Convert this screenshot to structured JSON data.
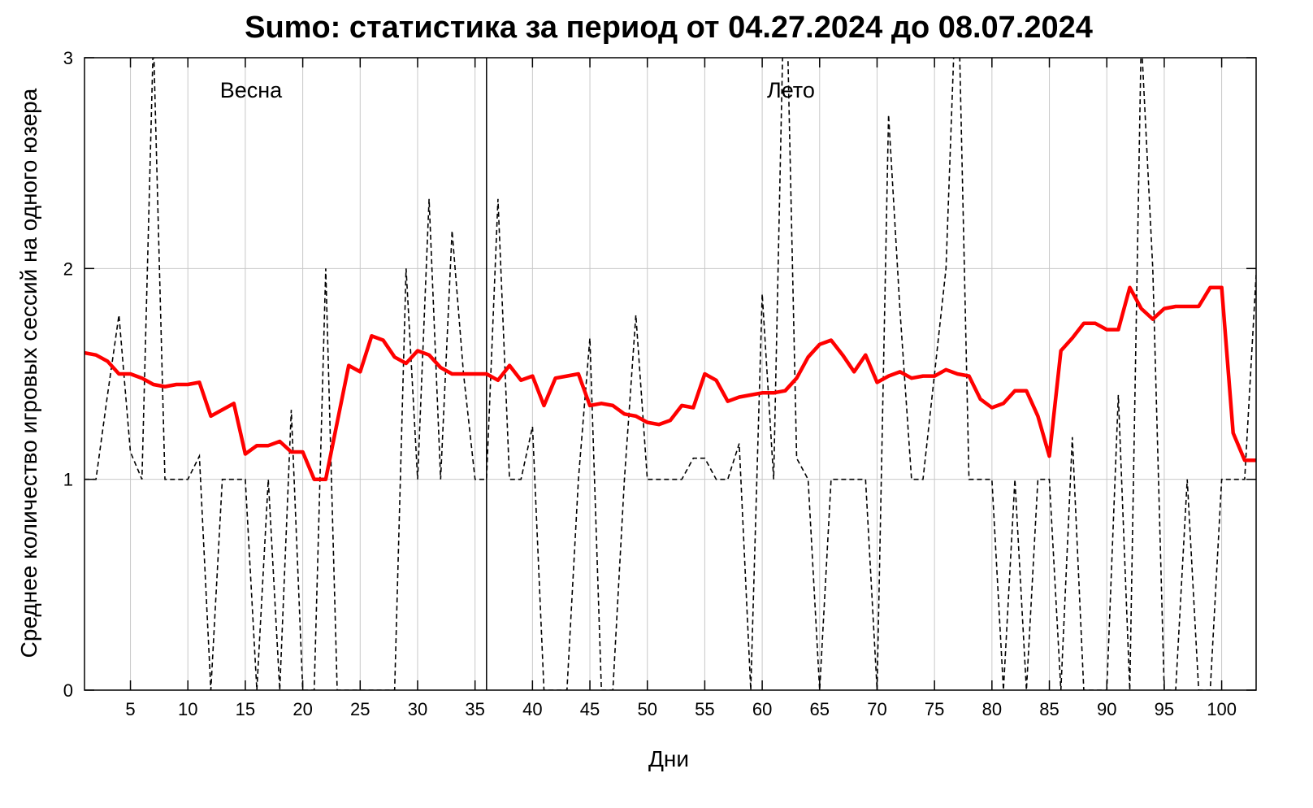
{
  "chart_data": {
    "type": "line",
    "title": "Sumo: статистика за период от 04.27.2024 до 08.07.2024",
    "xlabel": "Дни",
    "ylabel": "Среднее количество игровых сессий на одного юзера",
    "xlim": [
      1,
      103
    ],
    "ylim": [
      0,
      3
    ],
    "x_ticks": [
      5,
      10,
      15,
      20,
      25,
      30,
      35,
      40,
      45,
      50,
      55,
      60,
      65,
      70,
      75,
      80,
      85,
      90,
      95,
      100
    ],
    "y_ticks": [
      0,
      1,
      2,
      3
    ],
    "grid": true,
    "season_divider_x": 36,
    "annotations": [
      {
        "text": "Весна",
        "x": 15.5,
        "y": 2.85
      },
      {
        "text": "Лето",
        "x": 62.5,
        "y": 2.85
      }
    ],
    "series": [
      {
        "style": "dashed",
        "color": "#000000",
        "x": [
          1,
          2,
          3,
          4,
          5,
          6,
          7,
          8,
          9,
          10,
          11,
          12,
          13,
          14,
          15,
          16,
          17,
          18,
          19,
          20,
          21,
          22,
          23,
          24,
          25,
          26,
          27,
          28,
          29,
          30,
          31,
          32,
          33,
          34,
          35,
          36,
          37,
          38,
          39,
          40,
          41,
          42,
          43,
          44,
          45,
          46,
          47,
          48,
          49,
          50,
          51,
          52,
          53,
          54,
          55,
          56,
          57,
          58,
          59,
          60,
          61,
          62,
          63,
          64,
          65,
          66,
          67,
          68,
          69,
          70,
          71,
          72,
          73,
          74,
          75,
          76,
          77,
          78,
          79,
          80,
          81,
          82,
          83,
          84,
          85,
          86,
          87,
          88,
          89,
          90,
          91,
          92,
          93,
          94,
          95,
          96,
          97,
          98,
          99,
          100,
          101,
          102,
          103
        ],
        "values": [
          1,
          1,
          1.4,
          1.78,
          1.13,
          1,
          3.1,
          1,
          1,
          1,
          1.11,
          0,
          1,
          1,
          1,
          0,
          1,
          0,
          1.33,
          0,
          0,
          2,
          0,
          0,
          0,
          0,
          0,
          0,
          2,
          1,
          2.33,
          1,
          2.18,
          1.5,
          1,
          1,
          2.33,
          1,
          1,
          1.25,
          0,
          0,
          0,
          1,
          1.67,
          0,
          0,
          1,
          1.78,
          1,
          1,
          1,
          1,
          1.1,
          1.1,
          1,
          1,
          1.17,
          0,
          1.88,
          1,
          3.6,
          1.1,
          1,
          0,
          1,
          1,
          1,
          1,
          0,
          2.73,
          1.8,
          1,
          1,
          1.5,
          2,
          3.5,
          1,
          1,
          1,
          0,
          1,
          0,
          1,
          1,
          0,
          1.2,
          0,
          0,
          0,
          1.4,
          0,
          3.1,
          2,
          0,
          0,
          1,
          0,
          0,
          1,
          1,
          1,
          1.97
        ]
      },
      {
        "style": "solid",
        "color": "#ff0000",
        "x": [
          1,
          2,
          3,
          4,
          5,
          6,
          7,
          8,
          9,
          10,
          11,
          12,
          13,
          14,
          15,
          16,
          17,
          18,
          19,
          20,
          21,
          22,
          23,
          24,
          25,
          26,
          27,
          28,
          29,
          30,
          31,
          32,
          33,
          34,
          35,
          36,
          37,
          38,
          39,
          40,
          41,
          42,
          43,
          44,
          45,
          46,
          47,
          48,
          49,
          50,
          51,
          52,
          53,
          54,
          55,
          56,
          57,
          58,
          59,
          60,
          61,
          62,
          63,
          64,
          65,
          66,
          67,
          68,
          69,
          70,
          71,
          72,
          73,
          74,
          75,
          76,
          77,
          78,
          79,
          80,
          81,
          82,
          83,
          84,
          85,
          86,
          87,
          88,
          89,
          90,
          91,
          92,
          93,
          94,
          95,
          96,
          97,
          98,
          99,
          100,
          101,
          102,
          103
        ],
        "values": [
          1.6,
          1.59,
          1.56,
          1.5,
          1.5,
          1.48,
          1.45,
          1.44,
          1.45,
          1.45,
          1.46,
          1.3,
          1.33,
          1.36,
          1.12,
          1.16,
          1.16,
          1.18,
          1.13,
          1.13,
          1.0,
          1.0,
          1.27,
          1.54,
          1.51,
          1.68,
          1.66,
          1.58,
          1.55,
          1.61,
          1.59,
          1.53,
          1.5,
          1.5,
          1.5,
          1.5,
          1.47,
          1.54,
          1.47,
          1.49,
          1.35,
          1.48,
          1.49,
          1.5,
          1.35,
          1.36,
          1.35,
          1.31,
          1.3,
          1.27,
          1.26,
          1.28,
          1.35,
          1.34,
          1.5,
          1.47,
          1.37,
          1.39,
          1.4,
          1.41,
          1.41,
          1.42,
          1.48,
          1.58,
          1.64,
          1.66,
          1.59,
          1.51,
          1.59,
          1.46,
          1.49,
          1.51,
          1.48,
          1.49,
          1.49,
          1.52,
          1.5,
          1.49,
          1.38,
          1.34,
          1.36,
          1.42,
          1.42,
          1.3,
          1.11,
          1.61,
          1.67,
          1.74,
          1.74,
          1.71,
          1.71,
          1.91,
          1.81,
          1.76,
          1.81,
          1.82,
          1.82,
          1.82,
          1.91,
          1.91,
          1.22,
          1.09,
          1.09
        ]
      }
    ]
  }
}
